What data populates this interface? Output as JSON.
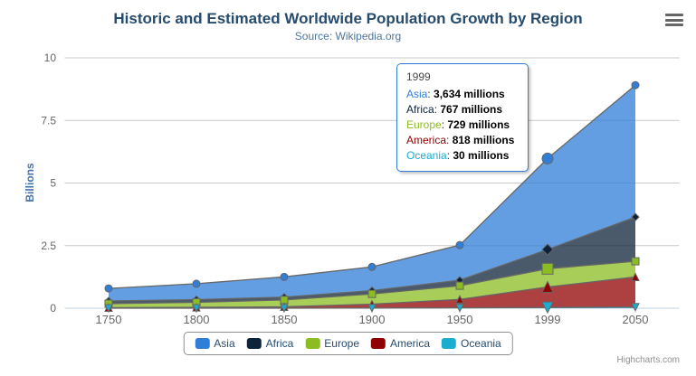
{
  "title": "Historic and Estimated Worldwide Population Growth by Region",
  "subtitle": "Source: Wikipedia.org",
  "credits_label": "Highcharts.com",
  "chart_data": {
    "type": "area",
    "stacking": "normal",
    "title": "Historic and Estimated Worldwide Population Growth by Region",
    "subtitle": "Source: Wikipedia.org",
    "categories": [
      "1750",
      "1800",
      "1850",
      "1900",
      "1950",
      "1999",
      "2050"
    ],
    "series": [
      {
        "name": "Asia",
        "color": "#2f7ed8",
        "marker": "circle",
        "values_millions": [
          502,
          635,
          809,
          947,
          1402,
          3634,
          5268
        ]
      },
      {
        "name": "Africa",
        "color": "#0d233a",
        "marker": "diamond",
        "values_millions": [
          106,
          107,
          111,
          133,
          221,
          767,
          1766
        ]
      },
      {
        "name": "Europe",
        "color": "#8bbc21",
        "marker": "square",
        "values_millions": [
          163,
          203,
          276,
          408,
          547,
          729,
          628
        ]
      },
      {
        "name": "America",
        "color": "#910000",
        "marker": "triangle",
        "values_millions": [
          18,
          31,
          54,
          156,
          339,
          818,
          1201
        ]
      },
      {
        "name": "Oceania",
        "color": "#1aadce",
        "marker": "triangle-down",
        "values_millions": [
          2,
          2,
          2,
          6,
          13,
          30,
          46
        ]
      }
    ],
    "stack_order_bottom_to_top": [
      "Oceania",
      "America",
      "Europe",
      "Africa",
      "Asia"
    ],
    "ylabel": "Billions",
    "xlabel": "",
    "ylim": [
      0,
      10
    ],
    "yticks": [
      0,
      2.5,
      5,
      7.5,
      10
    ],
    "grid": true,
    "legend_position": "bottom-center",
    "line_color": "#666666",
    "fill_opacity": 0.75,
    "axis_line_color": "#C0D0E0",
    "grid_line_color": "#C9C9C9",
    "hovered_category": "1999"
  },
  "tooltip": {
    "header": "1999",
    "border_color": "#2f7ed8",
    "value_suffix": "millions",
    "rows": [
      {
        "series": "Asia",
        "color": "#2f7ed8",
        "value": "3,634 millions"
      },
      {
        "series": "Africa",
        "color": "#0d233a",
        "value": "767 millions"
      },
      {
        "series": "Europe",
        "color": "#8bbc21",
        "value": "729 millions"
      },
      {
        "series": "America",
        "color": "#910000",
        "value": "818 millions"
      },
      {
        "series": "Oceania",
        "color": "#1aadce",
        "value": "30 millions"
      }
    ]
  },
  "legend": {
    "items": [
      {
        "label": "Asia",
        "color": "#2f7ed8"
      },
      {
        "label": "Africa",
        "color": "#0d233a"
      },
      {
        "label": "Europe",
        "color": "#8bbc21"
      },
      {
        "label": "America",
        "color": "#910000"
      },
      {
        "label": "Oceania",
        "color": "#1aadce"
      }
    ]
  }
}
